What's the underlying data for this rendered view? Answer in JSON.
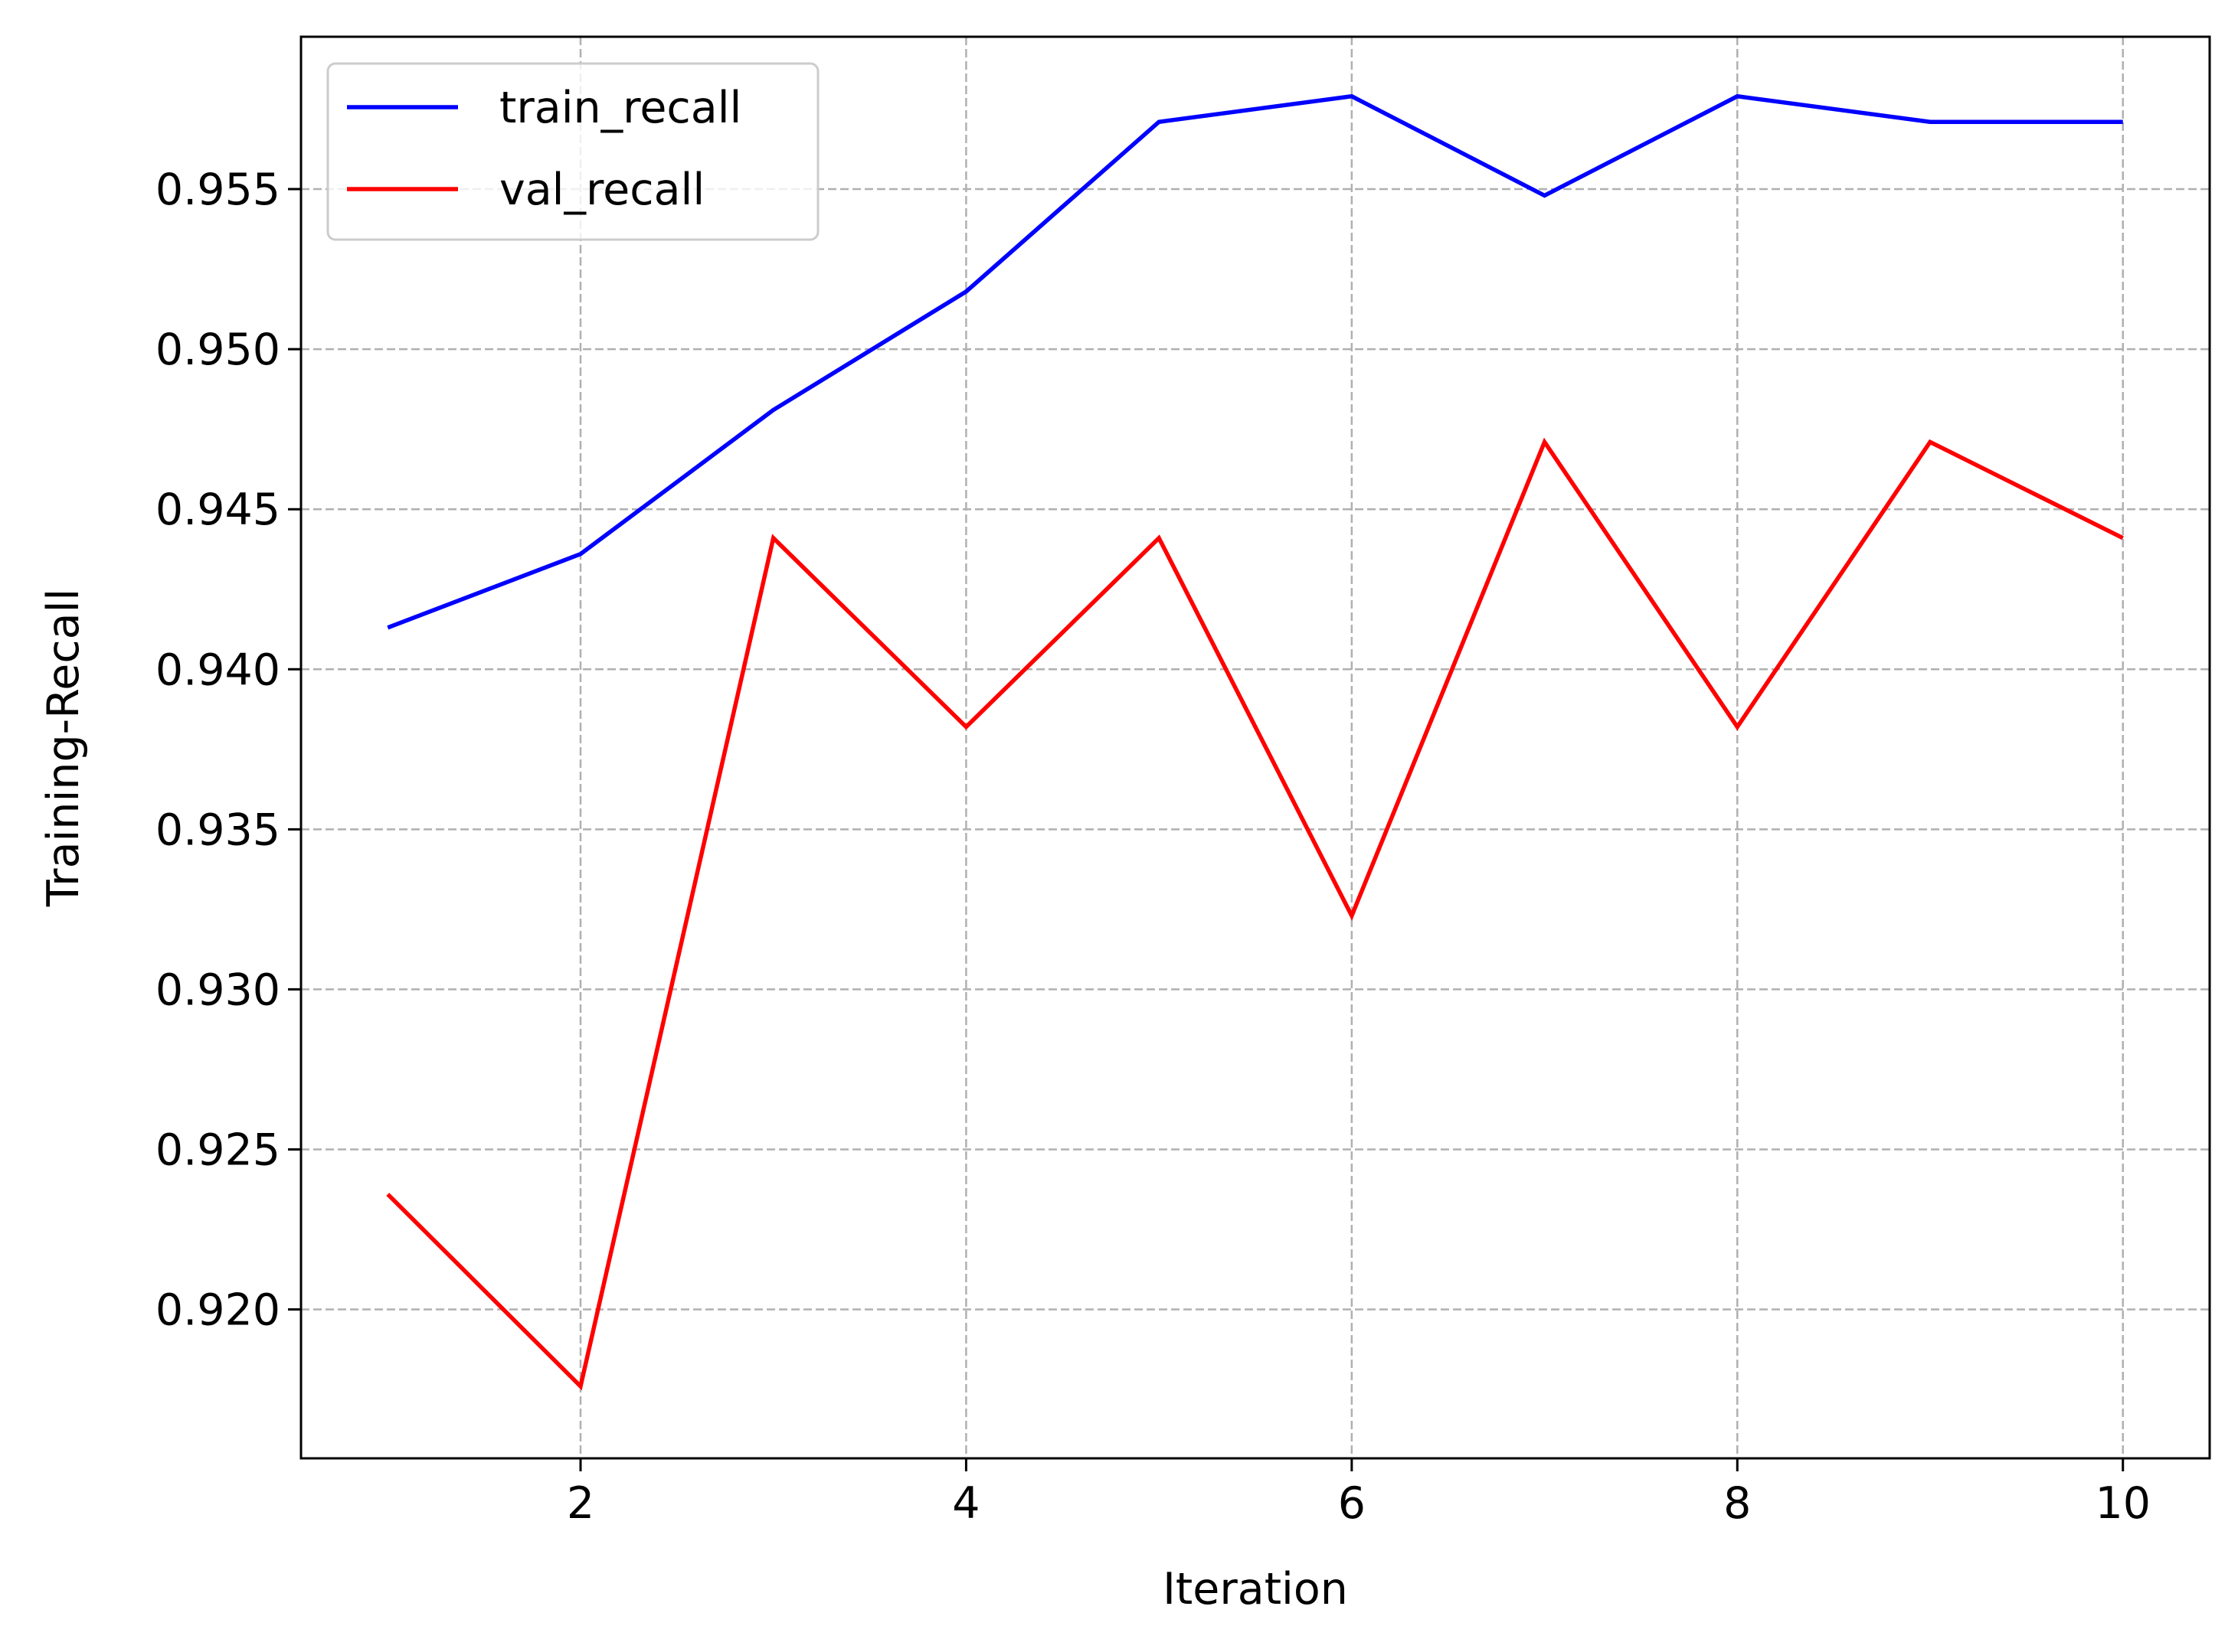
{
  "chart_data": {
    "type": "line",
    "x": [
      1,
      2,
      3,
      4,
      5,
      6,
      7,
      8,
      9,
      10
    ],
    "series": [
      {
        "name": "train_recall",
        "color": "#0000ff",
        "values": [
          0.9413,
          0.9436,
          0.9481,
          0.9518,
          0.9571,
          0.9579,
          0.9548,
          0.9579,
          0.9571,
          0.9571
        ]
      },
      {
        "name": "val_recall",
        "color": "#ff0000",
        "values": [
          0.9236,
          0.9176,
          0.9441,
          0.9382,
          0.9441,
          0.9323,
          0.9471,
          0.9382,
          0.9471,
          0.9441
        ]
      }
    ],
    "title": "",
    "xlabel": "Iteration",
    "ylabel": "Training-Recall",
    "xlim": [
      0.55,
      10.45
    ],
    "ylim": [
      0.91535,
      0.95976
    ],
    "xticks": [
      2,
      4,
      6,
      8,
      10
    ],
    "xtick_labels": [
      "2",
      "4",
      "6",
      "8",
      "10"
    ],
    "yticks": [
      0.92,
      0.925,
      0.93,
      0.935,
      0.94,
      0.945,
      0.95,
      0.955
    ],
    "ytick_labels": [
      "0.920",
      "0.925",
      "0.930",
      "0.935",
      "0.940",
      "0.945",
      "0.950",
      "0.955"
    ],
    "grid": true,
    "legend_position": "upper-left"
  }
}
